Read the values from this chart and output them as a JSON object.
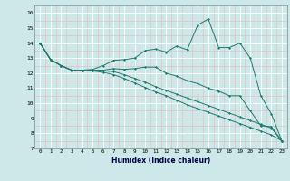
{
  "xlabel": "Humidex (Indice chaleur)",
  "bg_color": "#cce8e8",
  "line_color": "#1a7a6e",
  "major_grid_color": "#ffffff",
  "minor_grid_color": "#e8b8b8",
  "xlim": [
    -0.5,
    23.5
  ],
  "ylim": [
    7,
    16.5
  ],
  "xticks": [
    0,
    1,
    2,
    3,
    4,
    5,
    6,
    7,
    8,
    9,
    10,
    11,
    12,
    13,
    14,
    15,
    16,
    17,
    18,
    19,
    20,
    21,
    22,
    23
  ],
  "yticks": [
    7,
    8,
    9,
    10,
    11,
    12,
    13,
    14,
    15,
    16
  ],
  "s1_x": [
    0,
    1,
    2,
    3,
    4,
    5,
    6,
    7,
    8,
    9,
    10,
    11,
    12,
    13,
    14,
    15,
    16,
    17,
    18,
    19,
    20,
    21,
    22,
    23
  ],
  "s1_y": [
    14.0,
    12.9,
    12.5,
    12.2,
    12.2,
    12.25,
    12.5,
    12.85,
    12.9,
    13.0,
    13.5,
    13.6,
    13.4,
    13.8,
    13.55,
    15.2,
    15.6,
    13.7,
    13.7,
    14.0,
    13.0,
    10.5,
    9.3,
    7.5
  ],
  "s2_x": [
    0,
    1,
    2,
    3,
    4,
    5,
    6,
    7,
    8,
    9,
    10,
    11,
    12,
    13,
    14,
    15,
    16,
    17,
    18,
    19,
    20,
    21,
    22,
    23
  ],
  "s2_y": [
    14.0,
    12.9,
    12.5,
    12.2,
    12.2,
    12.2,
    12.2,
    12.3,
    12.25,
    12.3,
    12.4,
    12.4,
    12.0,
    11.8,
    11.5,
    11.3,
    11.0,
    10.8,
    10.5,
    10.5,
    9.5,
    8.5,
    8.45,
    7.5
  ],
  "s3_x": [
    0,
    1,
    2,
    3,
    4,
    5,
    6,
    7,
    8,
    9,
    10,
    11,
    12,
    13,
    14,
    15,
    16,
    17,
    18,
    19,
    20,
    21,
    22,
    23
  ],
  "s3_y": [
    14.0,
    12.9,
    12.5,
    12.2,
    12.2,
    12.2,
    12.15,
    12.1,
    11.9,
    11.65,
    11.4,
    11.1,
    10.85,
    10.6,
    10.35,
    10.1,
    9.85,
    9.6,
    9.35,
    9.1,
    8.85,
    8.6,
    8.35,
    7.5
  ],
  "s4_x": [
    0,
    1,
    2,
    3,
    4,
    5,
    6,
    7,
    8,
    9,
    10,
    11,
    12,
    13,
    14,
    15,
    16,
    17,
    18,
    19,
    20,
    21,
    22,
    23
  ],
  "s4_y": [
    14.0,
    12.9,
    12.5,
    12.2,
    12.2,
    12.15,
    12.05,
    11.9,
    11.65,
    11.35,
    11.05,
    10.75,
    10.5,
    10.2,
    9.9,
    9.65,
    9.4,
    9.15,
    8.9,
    8.65,
    8.4,
    8.15,
    7.9,
    7.5
  ]
}
